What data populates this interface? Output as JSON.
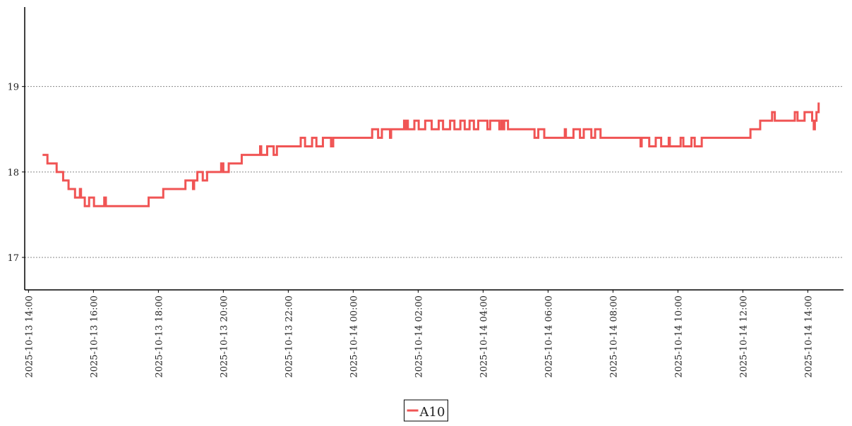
{
  "chart_data": {
    "type": "line",
    "step": "post",
    "grid": true,
    "legend": "bottom",
    "x": [
      "2025-10-13 14:26",
      "2025-10-13 14:35",
      "2025-10-13 14:52",
      "2025-10-13 15:04",
      "2025-10-13 15:14",
      "2025-10-13 15:26",
      "2025-10-13 15:35",
      "2025-10-13 15:37",
      "2025-10-13 15:44",
      "2025-10-13 15:52",
      "2025-10-13 16:01",
      "2025-10-13 16:20",
      "2025-10-13 16:23",
      "2025-10-13 17:42",
      "2025-10-13 18:09",
      "2025-10-13 18:50",
      "2025-10-13 19:04",
      "2025-10-13 19:06",
      "2025-10-13 19:12",
      "2025-10-13 19:22",
      "2025-10-13 19:30",
      "2025-10-13 19:56",
      "2025-10-13 20:00",
      "2025-10-13 20:10",
      "2025-10-13 20:34",
      "2025-10-13 21:08",
      "2025-10-13 21:10",
      "2025-10-13 21:21",
      "2025-10-13 21:33",
      "2025-10-13 21:39",
      "2025-10-13 22:23",
      "2025-10-13 22:31",
      "2025-10-13 22:44",
      "2025-10-13 22:52",
      "2025-10-13 23:04",
      "2025-10-13 23:19",
      "2025-10-13 23:23",
      "2025-10-14 00:35",
      "2025-10-14 00:46",
      "2025-10-14 00:53",
      "2025-10-14 01:08",
      "2025-10-14 01:10",
      "2025-10-14 01:34",
      "2025-10-14 01:36",
      "2025-10-14 01:38",
      "2025-10-14 01:41",
      "2025-10-14 01:53",
      "2025-10-14 02:01",
      "2025-10-14 02:13",
      "2025-10-14 02:25",
      "2025-10-14 02:38",
      "2025-10-14 02:46",
      "2025-10-14 02:59",
      "2025-10-14 03:07",
      "2025-10-14 03:18",
      "2025-10-14 03:26",
      "2025-10-14 03:35",
      "2025-10-14 03:43",
      "2025-10-14 03:51",
      "2025-10-14 04:08",
      "2025-10-14 04:13",
      "2025-10-14 04:30",
      "2025-10-14 04:34",
      "2025-10-14 04:37",
      "2025-10-14 04:39",
      "2025-10-14 04:46",
      "2025-10-14 05:35",
      "2025-10-14 05:42",
      "2025-10-14 05:53",
      "2025-10-14 06:31",
      "2025-10-14 06:33",
      "2025-10-14 06:47",
      "2025-10-14 06:59",
      "2025-10-14 07:06",
      "2025-10-14 07:20",
      "2025-10-14 07:27",
      "2025-10-14 07:37",
      "2025-10-14 08:51",
      "2025-10-14 08:53",
      "2025-10-14 09:07",
      "2025-10-14 09:19",
      "2025-10-14 09:29",
      "2025-10-14 09:43",
      "2025-10-14 09:45",
      "2025-10-14 10:05",
      "2025-10-14 10:10",
      "2025-10-14 10:25",
      "2025-10-14 10:31",
      "2025-10-14 10:44",
      "2025-10-14 12:14",
      "2025-10-14 12:32",
      "2025-10-14 12:54",
      "2025-10-14 12:59",
      "2025-10-14 13:36",
      "2025-10-14 13:41",
      "2025-10-14 13:54",
      "2025-10-14 14:08",
      "2025-10-14 14:11",
      "2025-10-14 14:13",
      "2025-10-14 14:16",
      "2025-10-14 14:20",
      "2025-10-14 14:22"
    ],
    "series": [
      {
        "name": "A10",
        "color": "#f05454",
        "values": [
          18.2,
          18.1,
          18.0,
          17.9,
          17.8,
          17.7,
          17.8,
          17.7,
          17.6,
          17.7,
          17.6,
          17.7,
          17.6,
          17.7,
          17.8,
          17.9,
          17.8,
          17.9,
          18.0,
          17.9,
          18.0,
          18.1,
          18.0,
          18.1,
          18.2,
          18.3,
          18.2,
          18.3,
          18.2,
          18.3,
          18.4,
          18.3,
          18.4,
          18.3,
          18.4,
          18.3,
          18.4,
          18.5,
          18.4,
          18.5,
          18.4,
          18.5,
          18.6,
          18.5,
          18.6,
          18.5,
          18.6,
          18.5,
          18.6,
          18.5,
          18.6,
          18.5,
          18.6,
          18.5,
          18.6,
          18.5,
          18.6,
          18.5,
          18.6,
          18.5,
          18.6,
          18.5,
          18.6,
          18.5,
          18.6,
          18.5,
          18.4,
          18.5,
          18.4,
          18.5,
          18.4,
          18.5,
          18.4,
          18.5,
          18.4,
          18.5,
          18.4,
          18.3,
          18.4,
          18.3,
          18.4,
          18.3,
          18.4,
          18.3,
          18.4,
          18.3,
          18.4,
          18.3,
          18.4,
          18.5,
          18.6,
          18.7,
          18.6,
          18.7,
          18.6,
          18.7,
          18.6,
          18.5,
          18.6,
          18.7,
          18.8,
          18.8
        ]
      }
    ],
    "xlim": [
      "2025-10-13 13:53",
      "2025-10-14 15:06"
    ],
    "xticks": [
      "2025-10-13 14:00",
      "2025-10-13 16:00",
      "2025-10-13 18:00",
      "2025-10-13 20:00",
      "2025-10-13 22:00",
      "2025-10-14 00:00",
      "2025-10-14 02:00",
      "2025-10-14 04:00",
      "2025-10-14 06:00",
      "2025-10-14 08:00",
      "2025-10-14 10:00",
      "2025-10-14 12:00",
      "2025-10-14 14:00"
    ],
    "ylim": [
      16.62,
      19.93
    ],
    "yticks": [
      17,
      18,
      19
    ]
  }
}
